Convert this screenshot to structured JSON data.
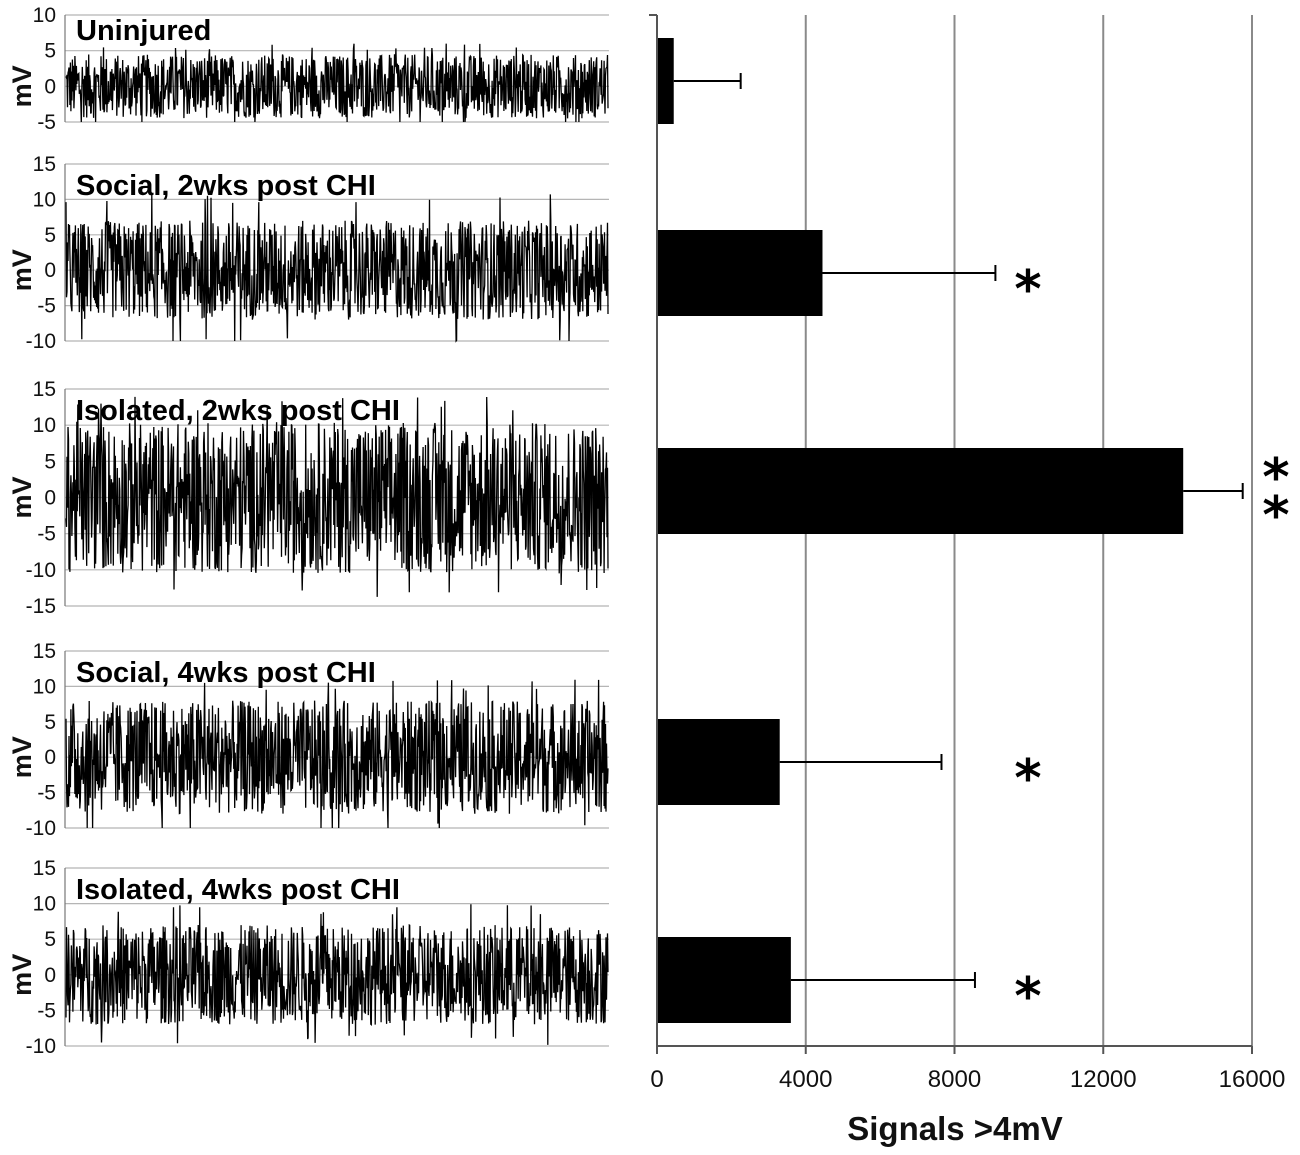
{
  "chart_data": [
    {
      "type": "line",
      "title": "Uninjured",
      "ylabel": "mV",
      "yticks": [
        10,
        5,
        0,
        -5
      ],
      "ylim": [
        -5,
        10
      ],
      "trace_amplitude_mV": 4.5,
      "trace_peak_mV": 6
    },
    {
      "type": "line",
      "title": "Social, 2wks post CHI",
      "ylabel": "mV",
      "yticks": [
        15,
        10,
        5,
        0,
        -5,
        -10
      ],
      "ylim": [
        -10,
        15
      ],
      "trace_amplitude_mV": 7,
      "trace_peak_mV": 11
    },
    {
      "type": "line",
      "title": "Isolated, 2wks post CHI",
      "ylabel": "mV",
      "yticks": [
        15,
        10,
        5,
        0,
        -5,
        -10,
        -15
      ],
      "ylim": [
        -15,
        15
      ],
      "trace_amplitude_mV": 10.5,
      "trace_peak_mV": 14
    },
    {
      "type": "line",
      "title": "Social, 4wks post CHI",
      "ylabel": "mV",
      "yticks": [
        15,
        10,
        5,
        0,
        -5,
        -10
      ],
      "ylim": [
        -10,
        15
      ],
      "trace_amplitude_mV": 8,
      "trace_peak_mV": 11
    },
    {
      "type": "line",
      "title": "Isolated, 4wks post CHI",
      "ylabel": "mV",
      "yticks": [
        15,
        10,
        5,
        0,
        -5,
        -10
      ],
      "ylim": [
        -10,
        15
      ],
      "trace_amplitude_mV": 7,
      "trace_peak_mV": 10
    },
    {
      "type": "bar",
      "orientation": "horizontal",
      "categories": [
        "Uninjured",
        "Social, 2wks post CHI",
        "Isolated, 2wks post CHI",
        "Social, 4wks post CHI",
        "Isolated, 4wks post CHI"
      ],
      "values": [
        450,
        4450,
        14150,
        3300,
        3600
      ],
      "errors": [
        1800,
        4650,
        1600,
        4350,
        4950
      ],
      "significance": [
        "",
        "*",
        "**",
        "*",
        "*"
      ],
      "xlabel": "Signals >4mV",
      "xticks": [
        0,
        4000,
        8000,
        12000,
        16000
      ],
      "xlim": [
        0,
        16000
      ],
      "grid": "vertical",
      "bar_color": "#000000"
    }
  ]
}
